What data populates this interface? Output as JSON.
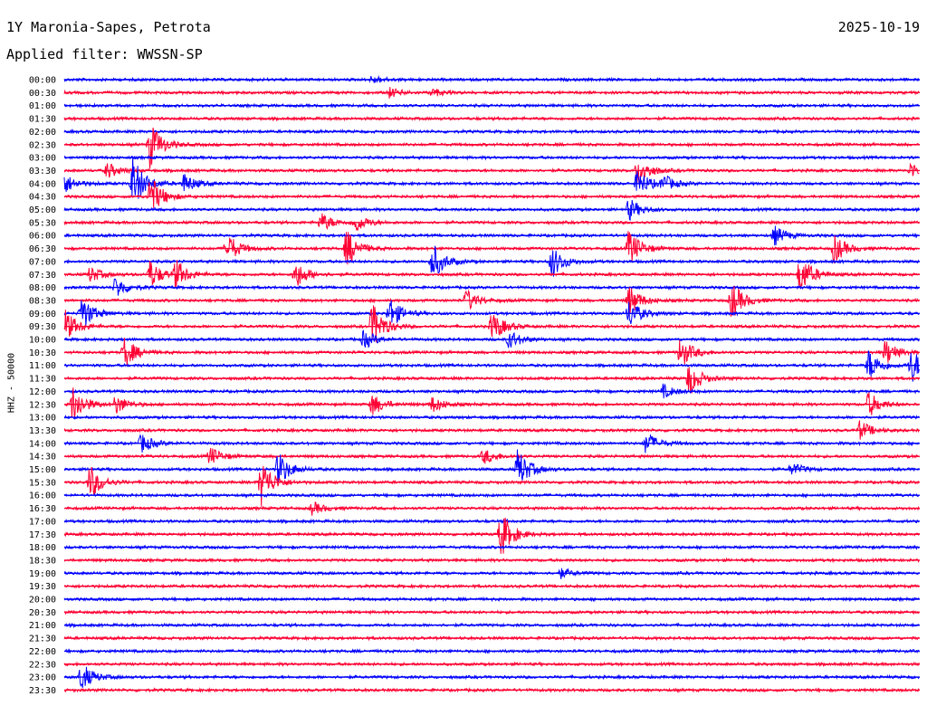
{
  "header": {
    "station": "1Y Maronia-Sapes, Petrota",
    "date": "2025-10-19",
    "filter_label": "Applied filter: WWSSN-SP"
  },
  "chart_data": {
    "type": "line",
    "kind": "helicorder",
    "title": "1Y Maronia-Sapes, Petrota",
    "ylabel": "HHZ - 50000",
    "row_labels": [
      "00:00",
      "00:30",
      "01:00",
      "01:30",
      "02:00",
      "02:30",
      "03:00",
      "03:30",
      "04:00",
      "04:30",
      "05:00",
      "05:30",
      "06:00",
      "06:30",
      "07:00",
      "07:30",
      "08:00",
      "08:30",
      "09:00",
      "09:30",
      "10:00",
      "10:30",
      "11:00",
      "11:30",
      "12:00",
      "12:30",
      "13:00",
      "13:30",
      "14:00",
      "14:30",
      "15:00",
      "15:30",
      "16:00",
      "16:30",
      "17:00",
      "17:30",
      "18:00",
      "18:30",
      "19:00",
      "19:30",
      "20:00",
      "20:30",
      "21:00",
      "21:30",
      "22:00",
      "22:30",
      "23:00",
      "23:30"
    ],
    "row_minutes": 30,
    "series_colors": [
      "#0000ff",
      "#ff0033"
    ],
    "grid": false,
    "events": [
      {
        "row": 0,
        "t": 0.36,
        "amp": 0.12
      },
      {
        "row": 1,
        "t": 0.38,
        "amp": 0.15
      },
      {
        "row": 1,
        "t": 0.43,
        "amp": 0.12
      },
      {
        "row": 5,
        "t": 0.1,
        "amp": 0.75
      },
      {
        "row": 7,
        "t": 0.05,
        "amp": 0.25
      },
      {
        "row": 7,
        "t": 0.67,
        "amp": 0.5
      },
      {
        "row": 7,
        "t": 0.99,
        "amp": 0.25
      },
      {
        "row": 8,
        "t": 0.0,
        "amp": 0.3
      },
      {
        "row": 8,
        "t": 0.08,
        "amp": 0.85
      },
      {
        "row": 8,
        "t": 0.14,
        "amp": 0.3
      },
      {
        "row": 8,
        "t": 0.67,
        "amp": 0.45
      },
      {
        "row": 8,
        "t": 0.7,
        "amp": 0.25
      },
      {
        "row": 9,
        "t": 0.1,
        "amp": 0.7
      },
      {
        "row": 10,
        "t": 0.66,
        "amp": 0.35
      },
      {
        "row": 11,
        "t": 0.3,
        "amp": 0.3
      },
      {
        "row": 11,
        "t": 0.34,
        "amp": 0.3
      },
      {
        "row": 12,
        "t": 0.83,
        "amp": 0.3
      },
      {
        "row": 13,
        "t": 0.19,
        "amp": 0.5
      },
      {
        "row": 13,
        "t": 0.33,
        "amp": 0.6
      },
      {
        "row": 13,
        "t": 0.66,
        "amp": 0.6
      },
      {
        "row": 13,
        "t": 0.9,
        "amp": 0.45
      },
      {
        "row": 14,
        "t": 0.43,
        "amp": 0.6
      },
      {
        "row": 14,
        "t": 0.57,
        "amp": 0.5
      },
      {
        "row": 15,
        "t": 0.03,
        "amp": 0.25
      },
      {
        "row": 15,
        "t": 0.1,
        "amp": 0.45
      },
      {
        "row": 15,
        "t": 0.13,
        "amp": 0.45
      },
      {
        "row": 15,
        "t": 0.27,
        "amp": 0.45
      },
      {
        "row": 15,
        "t": 0.86,
        "amp": 0.65
      },
      {
        "row": 16,
        "t": 0.06,
        "amp": 0.35
      },
      {
        "row": 17,
        "t": 0.47,
        "amp": 0.35
      },
      {
        "row": 17,
        "t": 0.66,
        "amp": 0.5
      },
      {
        "row": 17,
        "t": 0.78,
        "amp": 0.6
      },
      {
        "row": 18,
        "t": 0.02,
        "amp": 0.55
      },
      {
        "row": 18,
        "t": 0.38,
        "amp": 0.5
      },
      {
        "row": 18,
        "t": 0.66,
        "amp": 0.45
      },
      {
        "row": 19,
        "t": 0.0,
        "amp": 0.55
      },
      {
        "row": 19,
        "t": 0.36,
        "amp": 0.75
      },
      {
        "row": 19,
        "t": 0.5,
        "amp": 0.5
      },
      {
        "row": 20,
        "t": 0.35,
        "amp": 0.3
      },
      {
        "row": 20,
        "t": 0.52,
        "amp": 0.3
      },
      {
        "row": 21,
        "t": 0.07,
        "amp": 0.5
      },
      {
        "row": 21,
        "t": 0.72,
        "amp": 0.5
      },
      {
        "row": 21,
        "t": 0.96,
        "amp": 0.4
      },
      {
        "row": 22,
        "t": 0.94,
        "amp": 0.5
      },
      {
        "row": 22,
        "t": 0.99,
        "amp": 0.55
      },
      {
        "row": 23,
        "t": 0.73,
        "amp": 0.55
      },
      {
        "row": 24,
        "t": 0.7,
        "amp": 0.2
      },
      {
        "row": 25,
        "t": 0.01,
        "amp": 0.6
      },
      {
        "row": 25,
        "t": 0.06,
        "amp": 0.3
      },
      {
        "row": 25,
        "t": 0.36,
        "amp": 0.35
      },
      {
        "row": 25,
        "t": 0.43,
        "amp": 0.25
      },
      {
        "row": 25,
        "t": 0.94,
        "amp": 0.4
      },
      {
        "row": 27,
        "t": 0.93,
        "amp": 0.3
      },
      {
        "row": 28,
        "t": 0.09,
        "amp": 0.3
      },
      {
        "row": 28,
        "t": 0.68,
        "amp": 0.35
      },
      {
        "row": 29,
        "t": 0.17,
        "amp": 0.3
      },
      {
        "row": 29,
        "t": 0.49,
        "amp": 0.25
      },
      {
        "row": 30,
        "t": 0.25,
        "amp": 0.55
      },
      {
        "row": 30,
        "t": 0.53,
        "amp": 0.65
      },
      {
        "row": 30,
        "t": 0.85,
        "amp": 0.2
      },
      {
        "row": 31,
        "t": 0.03,
        "amp": 0.55
      },
      {
        "row": 31,
        "t": 0.23,
        "amp": 0.75
      },
      {
        "row": 33,
        "t": 0.29,
        "amp": 0.2
      },
      {
        "row": 35,
        "t": 0.51,
        "amp": 0.75
      },
      {
        "row": 38,
        "t": 0.58,
        "amp": 0.15
      },
      {
        "row": 46,
        "t": 0.02,
        "amp": 0.45
      }
    ]
  }
}
